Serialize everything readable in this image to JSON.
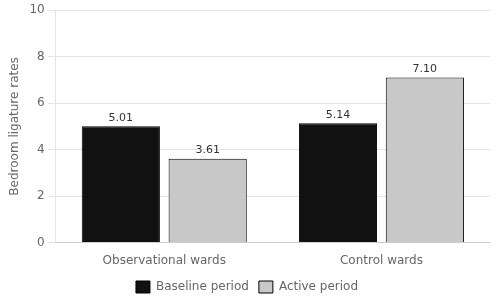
{
  "chart_data": {
    "type": "bar",
    "categories": [
      "Observational wards",
      "Control wards"
    ],
    "series": [
      {
        "name": "Baseline period",
        "color": "#111111",
        "values": [
          5.01,
          5.14
        ],
        "value_labels": [
          "5.01",
          "5.14"
        ]
      },
      {
        "name": "Active period",
        "color": "#c8c8c8",
        "values": [
          3.61,
          7.1
        ],
        "value_labels": [
          "3.61",
          "7.10"
        ]
      }
    ],
    "y_label": "Bedroom ligature rates",
    "ylim": [
      0,
      10
    ],
    "yticks": [
      0,
      2,
      4,
      6,
      8,
      10
    ],
    "grid": true,
    "legend": "bottom",
    "data_labels": true
  }
}
